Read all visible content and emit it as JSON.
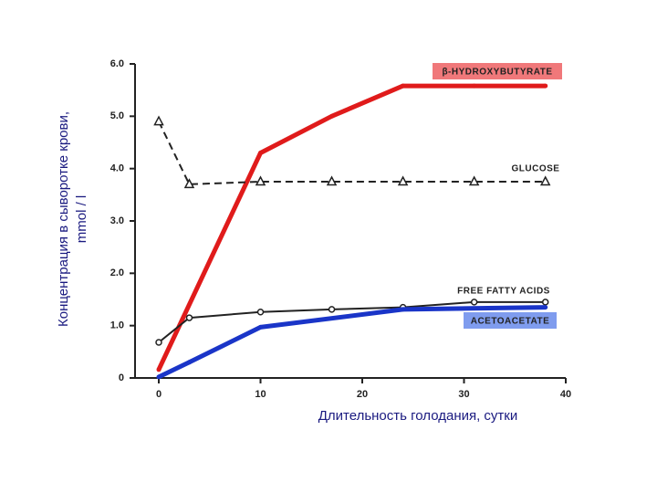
{
  "chart_data": {
    "type": "line",
    "y_label": [
      "Концентрация в сыворотке крови,",
      "mmol / l"
    ],
    "x_label": "Длительность голодания, сутки",
    "xlim": [
      0,
      40
    ],
    "xticks": [
      0,
      10,
      20,
      30,
      40
    ],
    "ylim": [
      0,
      6
    ],
    "yticks": [
      0,
      {
        "value": 1,
        "label": "1.0"
      },
      {
        "value": 2,
        "label": "2.0"
      },
      {
        "value": 3,
        "label": "3.0"
      },
      {
        "value": 4,
        "label": "4.0"
      },
      {
        "value": 5,
        "label": "5.0"
      },
      {
        "value": 6,
        "label": "6.0"
      }
    ],
    "series": [
      {
        "name": "β-HYDROXYBUTYRATE",
        "color": "#e01b1b",
        "label_color": "#f0787a",
        "marker": "dot",
        "dashed": false,
        "x": [
          0,
          10,
          17,
          24,
          31,
          38
        ],
        "values": [
          0.16,
          4.3,
          5.0,
          5.58,
          5.58,
          5.58
        ]
      },
      {
        "name": "GLUCOSE",
        "color": "#222222",
        "marker": "triangle",
        "dashed": true,
        "x": [
          0,
          3,
          10,
          17,
          24,
          31,
          38
        ],
        "values": [
          4.9,
          3.7,
          3.75,
          3.75,
          3.75,
          3.75,
          3.75
        ]
      },
      {
        "name": "FREE FATTY ACIDS",
        "color": "#222222",
        "marker": "circle",
        "dashed": false,
        "x": [
          0,
          3,
          10,
          17,
          24,
          31,
          38
        ],
        "values": [
          0.68,
          1.15,
          1.26,
          1.31,
          1.35,
          1.45,
          1.45
        ]
      },
      {
        "name": "ACETOACETATE",
        "color": "#1a35c8",
        "label_color": "#7f9cee",
        "marker": "dot",
        "dashed": false,
        "x": [
          0,
          3,
          10,
          24,
          38
        ],
        "values": [
          0.02,
          0.3,
          0.97,
          1.31,
          1.35
        ]
      }
    ]
  }
}
